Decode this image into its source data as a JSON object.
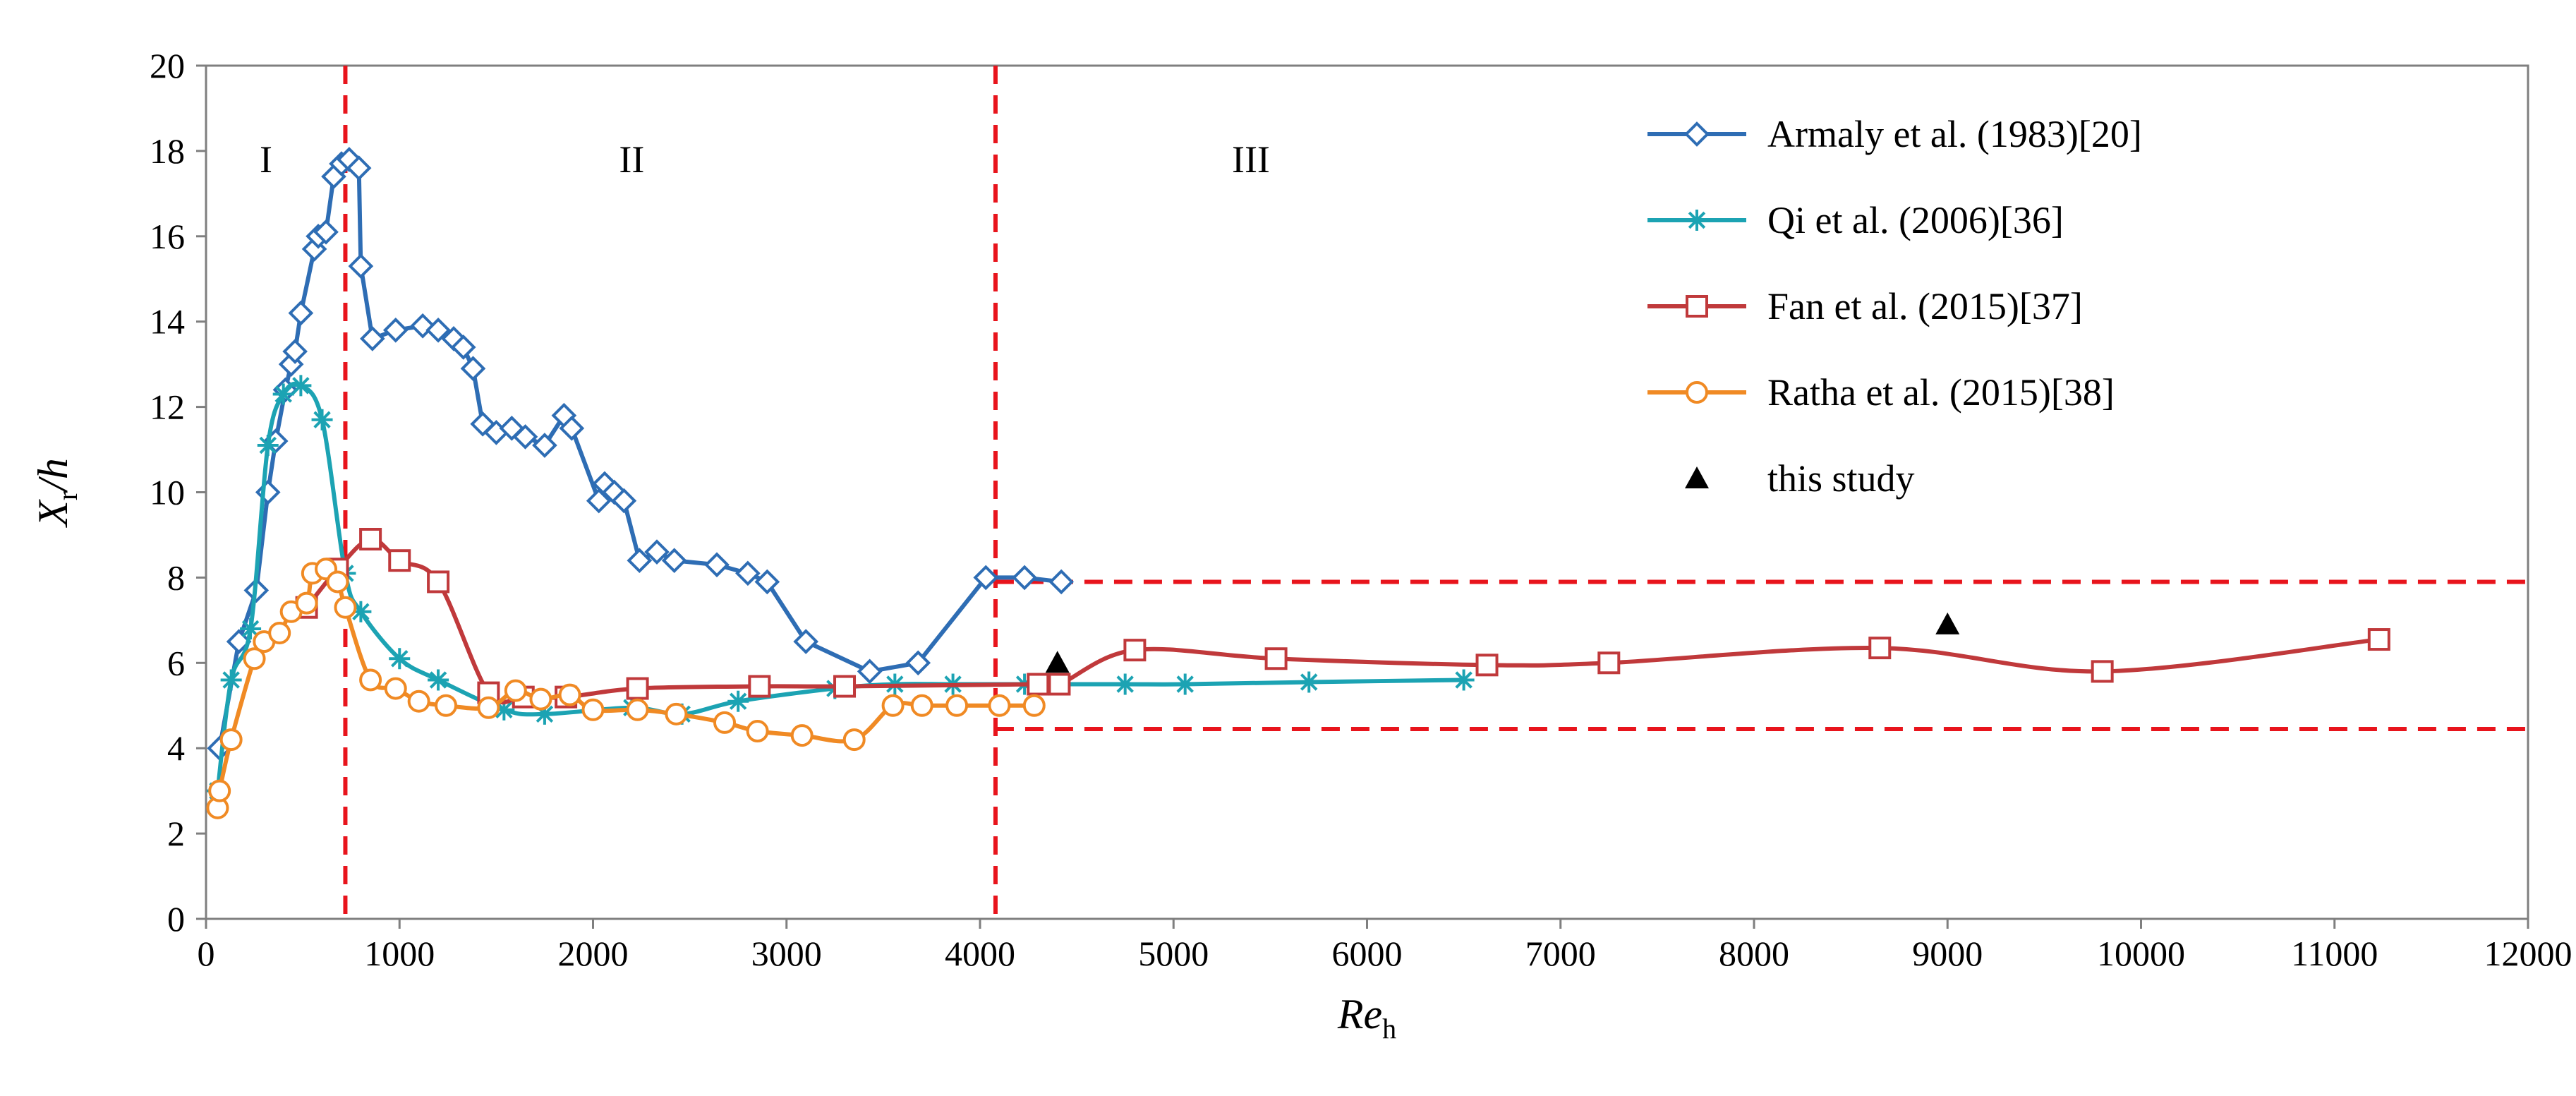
{
  "chart_data": {
    "type": "line",
    "xlabel": {
      "main": "Re",
      "sub": "h"
    },
    "ylabel": {
      "main": "X",
      "sub": "r",
      "suffix": "/h"
    },
    "xlim": [
      0,
      12000
    ],
    "ylim": [
      0,
      20
    ],
    "xticks": [
      0,
      1000,
      2000,
      3000,
      4000,
      5000,
      6000,
      7000,
      8000,
      9000,
      10000,
      11000,
      12000
    ],
    "yticks": [
      0,
      2,
      4,
      6,
      8,
      10,
      12,
      14,
      16,
      18,
      20
    ],
    "grid": false,
    "legend_position": "top-right",
    "regions": [
      {
        "label": "I",
        "x": 310,
        "y": 17.8
      },
      {
        "label": "II",
        "x": 2200,
        "y": 17.8
      },
      {
        "label": "III",
        "x": 5400,
        "y": 17.8
      }
    ],
    "region_boundaries": [
      720,
      4080
    ],
    "bounds": {
      "x_start": 4080,
      "x_end": 12000,
      "upper": 7.9,
      "lower": 4.45
    },
    "series": [
      {
        "name": "Armaly et al. (1983)[20]",
        "color": "#2E6DB4",
        "marker": "diamond",
        "smooth": false,
        "points": [
          [
            70,
            4.0
          ],
          [
            170,
            6.5
          ],
          [
            260,
            7.7
          ],
          [
            320,
            10.0
          ],
          [
            360,
            11.2
          ],
          [
            410,
            12.4
          ],
          [
            440,
            13.0
          ],
          [
            460,
            13.3
          ],
          [
            490,
            14.2
          ],
          [
            560,
            15.7
          ],
          [
            580,
            16.0
          ],
          [
            620,
            16.1
          ],
          [
            660,
            17.4
          ],
          [
            700,
            17.7
          ],
          [
            740,
            17.8
          ],
          [
            790,
            17.6
          ],
          [
            800,
            15.3
          ],
          [
            860,
            13.6
          ],
          [
            980,
            13.8
          ],
          [
            1120,
            13.9
          ],
          [
            1200,
            13.8
          ],
          [
            1280,
            13.6
          ],
          [
            1330,
            13.4
          ],
          [
            1380,
            12.9
          ],
          [
            1430,
            11.6
          ],
          [
            1500,
            11.4
          ],
          [
            1580,
            11.5
          ],
          [
            1650,
            11.3
          ],
          [
            1750,
            11.1
          ],
          [
            1850,
            11.8
          ],
          [
            1890,
            11.5
          ],
          [
            2030,
            9.8
          ],
          [
            2060,
            10.2
          ],
          [
            2110,
            10.0
          ],
          [
            2160,
            9.8
          ],
          [
            2240,
            8.4
          ],
          [
            2330,
            8.6
          ],
          [
            2420,
            8.4
          ],
          [
            2640,
            8.3
          ],
          [
            2800,
            8.1
          ],
          [
            2900,
            7.9
          ],
          [
            3100,
            6.5
          ],
          [
            3430,
            5.8
          ],
          [
            3680,
            6.0
          ],
          [
            4030,
            8.0
          ],
          [
            4230,
            8.0
          ],
          [
            4420,
            7.9
          ]
        ]
      },
      {
        "name": "Qi et al. (2006)[36]",
        "color": "#1CA3B3",
        "marker": "star",
        "smooth": true,
        "points": [
          [
            60,
            3.0
          ],
          [
            130,
            5.6
          ],
          [
            230,
            6.8
          ],
          [
            320,
            11.1
          ],
          [
            400,
            12.3
          ],
          [
            490,
            12.5
          ],
          [
            600,
            11.7
          ],
          [
            720,
            8.1
          ],
          [
            800,
            7.2
          ],
          [
            1000,
            6.1
          ],
          [
            1200,
            5.6
          ],
          [
            1540,
            4.9
          ],
          [
            1750,
            4.8
          ],
          [
            2200,
            4.95
          ],
          [
            2460,
            4.8
          ],
          [
            2750,
            5.1
          ],
          [
            3250,
            5.4
          ],
          [
            3560,
            5.5
          ],
          [
            3860,
            5.5
          ],
          [
            4230,
            5.5
          ],
          [
            4750,
            5.5
          ],
          [
            5060,
            5.5
          ],
          [
            5700,
            5.55
          ],
          [
            6500,
            5.6
          ]
        ]
      },
      {
        "name": "Fan et al. (2015)[37]",
        "color": "#C0393B",
        "marker": "square",
        "smooth": true,
        "points": [
          [
            520,
            7.3
          ],
          [
            680,
            8.2
          ],
          [
            850,
            8.9
          ],
          [
            1000,
            8.4
          ],
          [
            1200,
            7.9
          ],
          [
            1460,
            5.3
          ],
          [
            1640,
            5.2
          ],
          [
            1860,
            5.2
          ],
          [
            2230,
            5.4
          ],
          [
            2860,
            5.45
          ],
          [
            3300,
            5.45
          ],
          [
            4300,
            5.5
          ],
          [
            4410,
            5.5
          ],
          [
            4800,
            6.3
          ],
          [
            5530,
            6.1
          ],
          [
            6620,
            5.95
          ],
          [
            7250,
            6.0
          ],
          [
            8650,
            6.35
          ],
          [
            9800,
            5.8
          ],
          [
            11230,
            6.55
          ]
        ]
      },
      {
        "name": "Ratha et al. (2015)[38]",
        "color": "#F08A24",
        "marker": "circle",
        "smooth": true,
        "points": [
          [
            60,
            2.6
          ],
          [
            70,
            3.0
          ],
          [
            130,
            4.2
          ],
          [
            250,
            6.1
          ],
          [
            300,
            6.5
          ],
          [
            380,
            6.7
          ],
          [
            440,
            7.2
          ],
          [
            520,
            7.4
          ],
          [
            550,
            8.1
          ],
          [
            620,
            8.2
          ],
          [
            680,
            7.9
          ],
          [
            720,
            7.3
          ],
          [
            850,
            5.6
          ],
          [
            980,
            5.4
          ],
          [
            1100,
            5.1
          ],
          [
            1240,
            5.0
          ],
          [
            1460,
            4.95
          ],
          [
            1600,
            5.35
          ],
          [
            1730,
            5.15
          ],
          [
            1880,
            5.25
          ],
          [
            2000,
            4.9
          ],
          [
            2230,
            4.9
          ],
          [
            2430,
            4.8
          ],
          [
            2680,
            4.6
          ],
          [
            2850,
            4.4
          ],
          [
            3080,
            4.3
          ],
          [
            3350,
            4.2
          ],
          [
            3550,
            5.0
          ],
          [
            3700,
            5.0
          ],
          [
            3880,
            5.0
          ],
          [
            4100,
            5.0
          ],
          [
            4280,
            5.0
          ]
        ]
      },
      {
        "name": "this study",
        "color": "#000000",
        "marker": "triangle",
        "line": false,
        "points": [
          [
            4400,
            6.0
          ],
          [
            9000,
            6.9
          ]
        ]
      }
    ]
  }
}
